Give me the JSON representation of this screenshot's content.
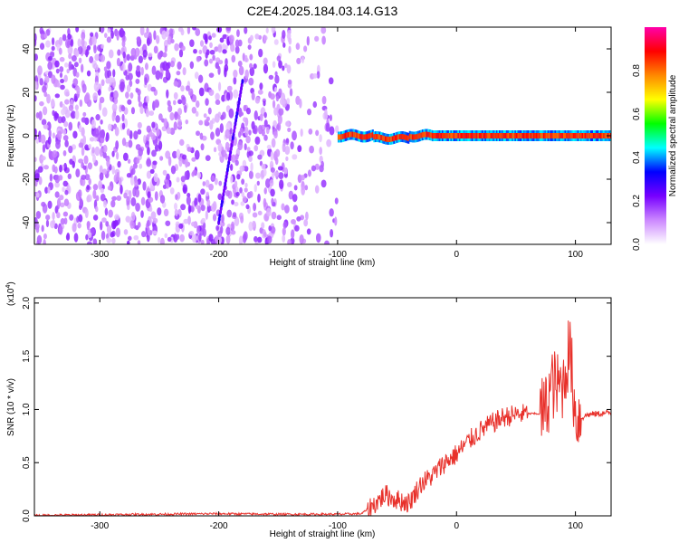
{
  "chart_data": [
    {
      "type": "heatmap",
      "title": "C2E4.2025.184.03.14.G13",
      "xlabel": "Height of straight line (km)",
      "ylabel": "Frequency (Hz)",
      "xlim": [
        -355,
        130
      ],
      "ylim": [
        -50,
        50
      ],
      "xticks": [
        -300,
        -200,
        -100,
        0,
        100
      ],
      "yticks": [
        -40,
        -20,
        0,
        20,
        40
      ],
      "colorbar": {
        "label": "Normalized spectral amplitude",
        "range": [
          0,
          1
        ],
        "ticks": [
          "0.0",
          "0.2",
          "0.4",
          "0.6",
          "0.8"
        ],
        "colormap": [
          "#ffffff",
          "#cc88ff",
          "#7700ff",
          "#0000ff",
          "#00ffff",
          "#00ff00",
          "#ffff00",
          "#ff8800",
          "#ff0000",
          "#ff00aa"
        ]
      },
      "regions": [
        {
          "description": "broadband noise",
          "x_range": [
            -355,
            -100
          ],
          "freq_range": [
            -50,
            50
          ],
          "amplitude_range": [
            0.05,
            0.2
          ]
        },
        {
          "description": "strong narrow tone",
          "x_range": [
            -100,
            130
          ],
          "freq_hz": 0,
          "amplitude": 0.9
        }
      ],
      "streak": {
        "x": [
          -200,
          -180
        ],
        "freq": [
          -40,
          25
        ],
        "amplitude": 0.2
      }
    },
    {
      "type": "line",
      "xlabel": "Height of straight line (km)",
      "ylabel": "SNR (10 * v/v)",
      "y_exponent_label": "(x10",
      "y_exponent_power": "4",
      "xlim": [
        -355,
        130
      ],
      "ylim": [
        0,
        2.05
      ],
      "xticks": [
        -300,
        -200,
        -100,
        0,
        100
      ],
      "yticks": [
        "0.0",
        "0.5",
        "1.0",
        "1.5",
        "2.0"
      ],
      "series": [
        {
          "color": "#e8302a",
          "x": [
            -355,
            -300,
            -250,
            -200,
            -150,
            -100,
            -80,
            -70,
            -60,
            -50,
            -40,
            -30,
            -20,
            -10,
            0,
            10,
            20,
            30,
            40,
            50,
            60,
            70,
            75,
            80,
            85,
            90,
            95,
            100,
            105,
            110,
            120,
            130
          ],
          "y": [
            0.005,
            0.01,
            0.015,
            0.02,
            0.015,
            0.015,
            0.02,
            0.1,
            0.2,
            0.15,
            0.12,
            0.3,
            0.38,
            0.5,
            0.58,
            0.7,
            0.8,
            0.87,
            0.93,
            0.95,
            0.96,
            0.96,
            1.0,
            1.25,
            1.2,
            1.25,
            1.6,
            0.95,
            0.92,
            0.95,
            0.96,
            0.97
          ]
        }
      ]
    }
  ]
}
